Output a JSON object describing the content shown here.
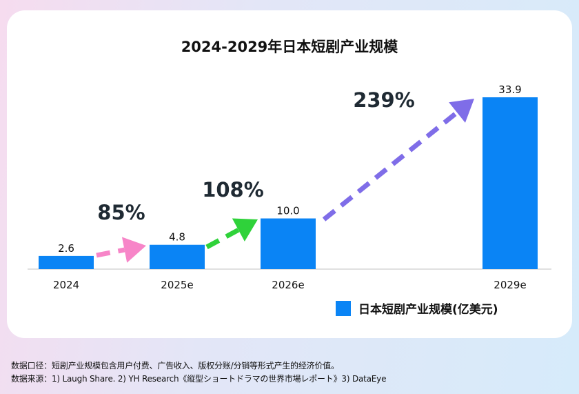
{
  "chart_data": {
    "type": "bar",
    "title": "2024-2029年日本短剧产业规模",
    "categories": [
      "2024",
      "2025e",
      "2026e",
      "2029e"
    ],
    "series": [
      {
        "name": "日本短剧产业规模(亿美元)",
        "values": [
          2.6,
          4.8,
          10.0,
          33.9
        ]
      }
    ],
    "data_labels": [
      "2.6",
      "4.8",
      "10.0",
      "33.9"
    ],
    "growth_annotations": [
      {
        "from": "2024",
        "to": "2025e",
        "label": "85%",
        "color": "#f785c8"
      },
      {
        "from": "2025e",
        "to": "2026e",
        "label": "108%",
        "color": "#2fd23a"
      },
      {
        "from": "2026e",
        "to": "2029e",
        "label": "239%",
        "color": "#7f6de8"
      }
    ],
    "bar_color": "#0a84f5",
    "ylim": [
      0,
      33.9
    ],
    "grid": false,
    "legend": "bottom-right"
  },
  "notes": {
    "definition": "数据口径：短剧产业规模包含用户付费、广告收入、版权分账/分销等形式产生的经济价值。",
    "source": "数据来源：1) Laugh Share. 2) YH Research《縦型ショートドラマの世界市場レポート》3) DataEye"
  }
}
